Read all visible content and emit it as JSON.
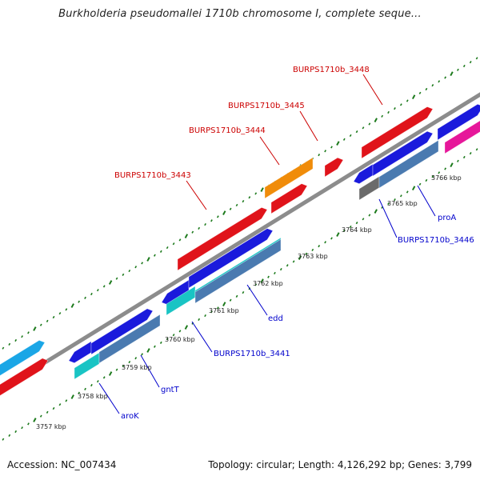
{
  "header": {
    "title": "Burkholderia pseudomallei 1710b chromosome I, complete seque..."
  },
  "footer": {
    "accession": "Accession: NC_007434",
    "summary": "Topology: circular; Length: 4,126,292 bp; Genes: 3,799"
  },
  "colors": {
    "red": "#e0131a",
    "blue": "#1a1adc",
    "cyan": "#19c4c4",
    "steel": "#4a7ab0",
    "orange": "#f08c0a",
    "skyblue": "#1aa6e6",
    "gray": "#6b6b6b",
    "pink": "#e6179a",
    "tick": "#1c7a1c",
    "backbone": "#8c8c8c",
    "red_label": "#cc0000",
    "blue_label": "#0000cc"
  },
  "kbp_ticks": [
    "3757 kbp",
    "3758 kbp",
    "3759 kbp",
    "3760 kbp",
    "3761 kbp",
    "3762 kbp",
    "3763 kbp",
    "3764 kbp",
    "3765 kbp",
    "3766 kbp"
  ],
  "red_labels": [
    "BURPS1710b_3448",
    "BURPS1710b_3445",
    "BURPS1710b_3444",
    "BURPS1710b_3443"
  ],
  "blue_labels": [
    "proA",
    "BURPS1710b_3446",
    "edd",
    "BURPS1710b_3441",
    "gntT",
    "aroK"
  ]
}
